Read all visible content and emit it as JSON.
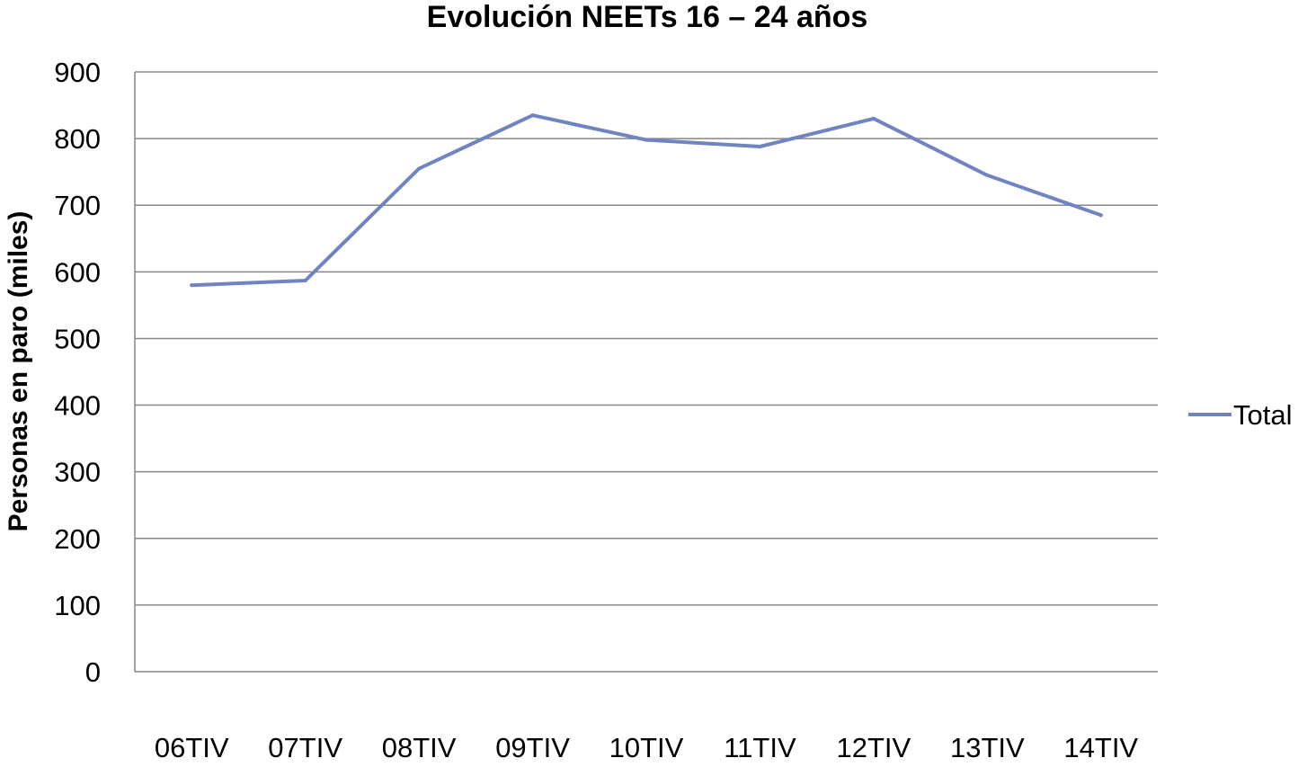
{
  "chart_data": {
    "type": "line",
    "title": "Evolución NEETs 16 – 24 años",
    "xlabel": "",
    "ylabel": "Personas en paro (miles)",
    "categories": [
      "06TIV",
      "07TIV",
      "08TIV",
      "09TIV",
      "10TIV",
      "11TIV",
      "12TIV",
      "13TIV",
      "14TIV"
    ],
    "series": [
      {
        "name": "Total",
        "color": "#6f84c0",
        "values": [
          580,
          587,
          755,
          835,
          798,
          788,
          830,
          745,
          685
        ]
      }
    ],
    "ylim": [
      0,
      900
    ],
    "yticks": [
      0,
      100,
      200,
      300,
      400,
      500,
      600,
      700,
      800,
      900
    ],
    "grid": true,
    "legend_position": "right"
  }
}
